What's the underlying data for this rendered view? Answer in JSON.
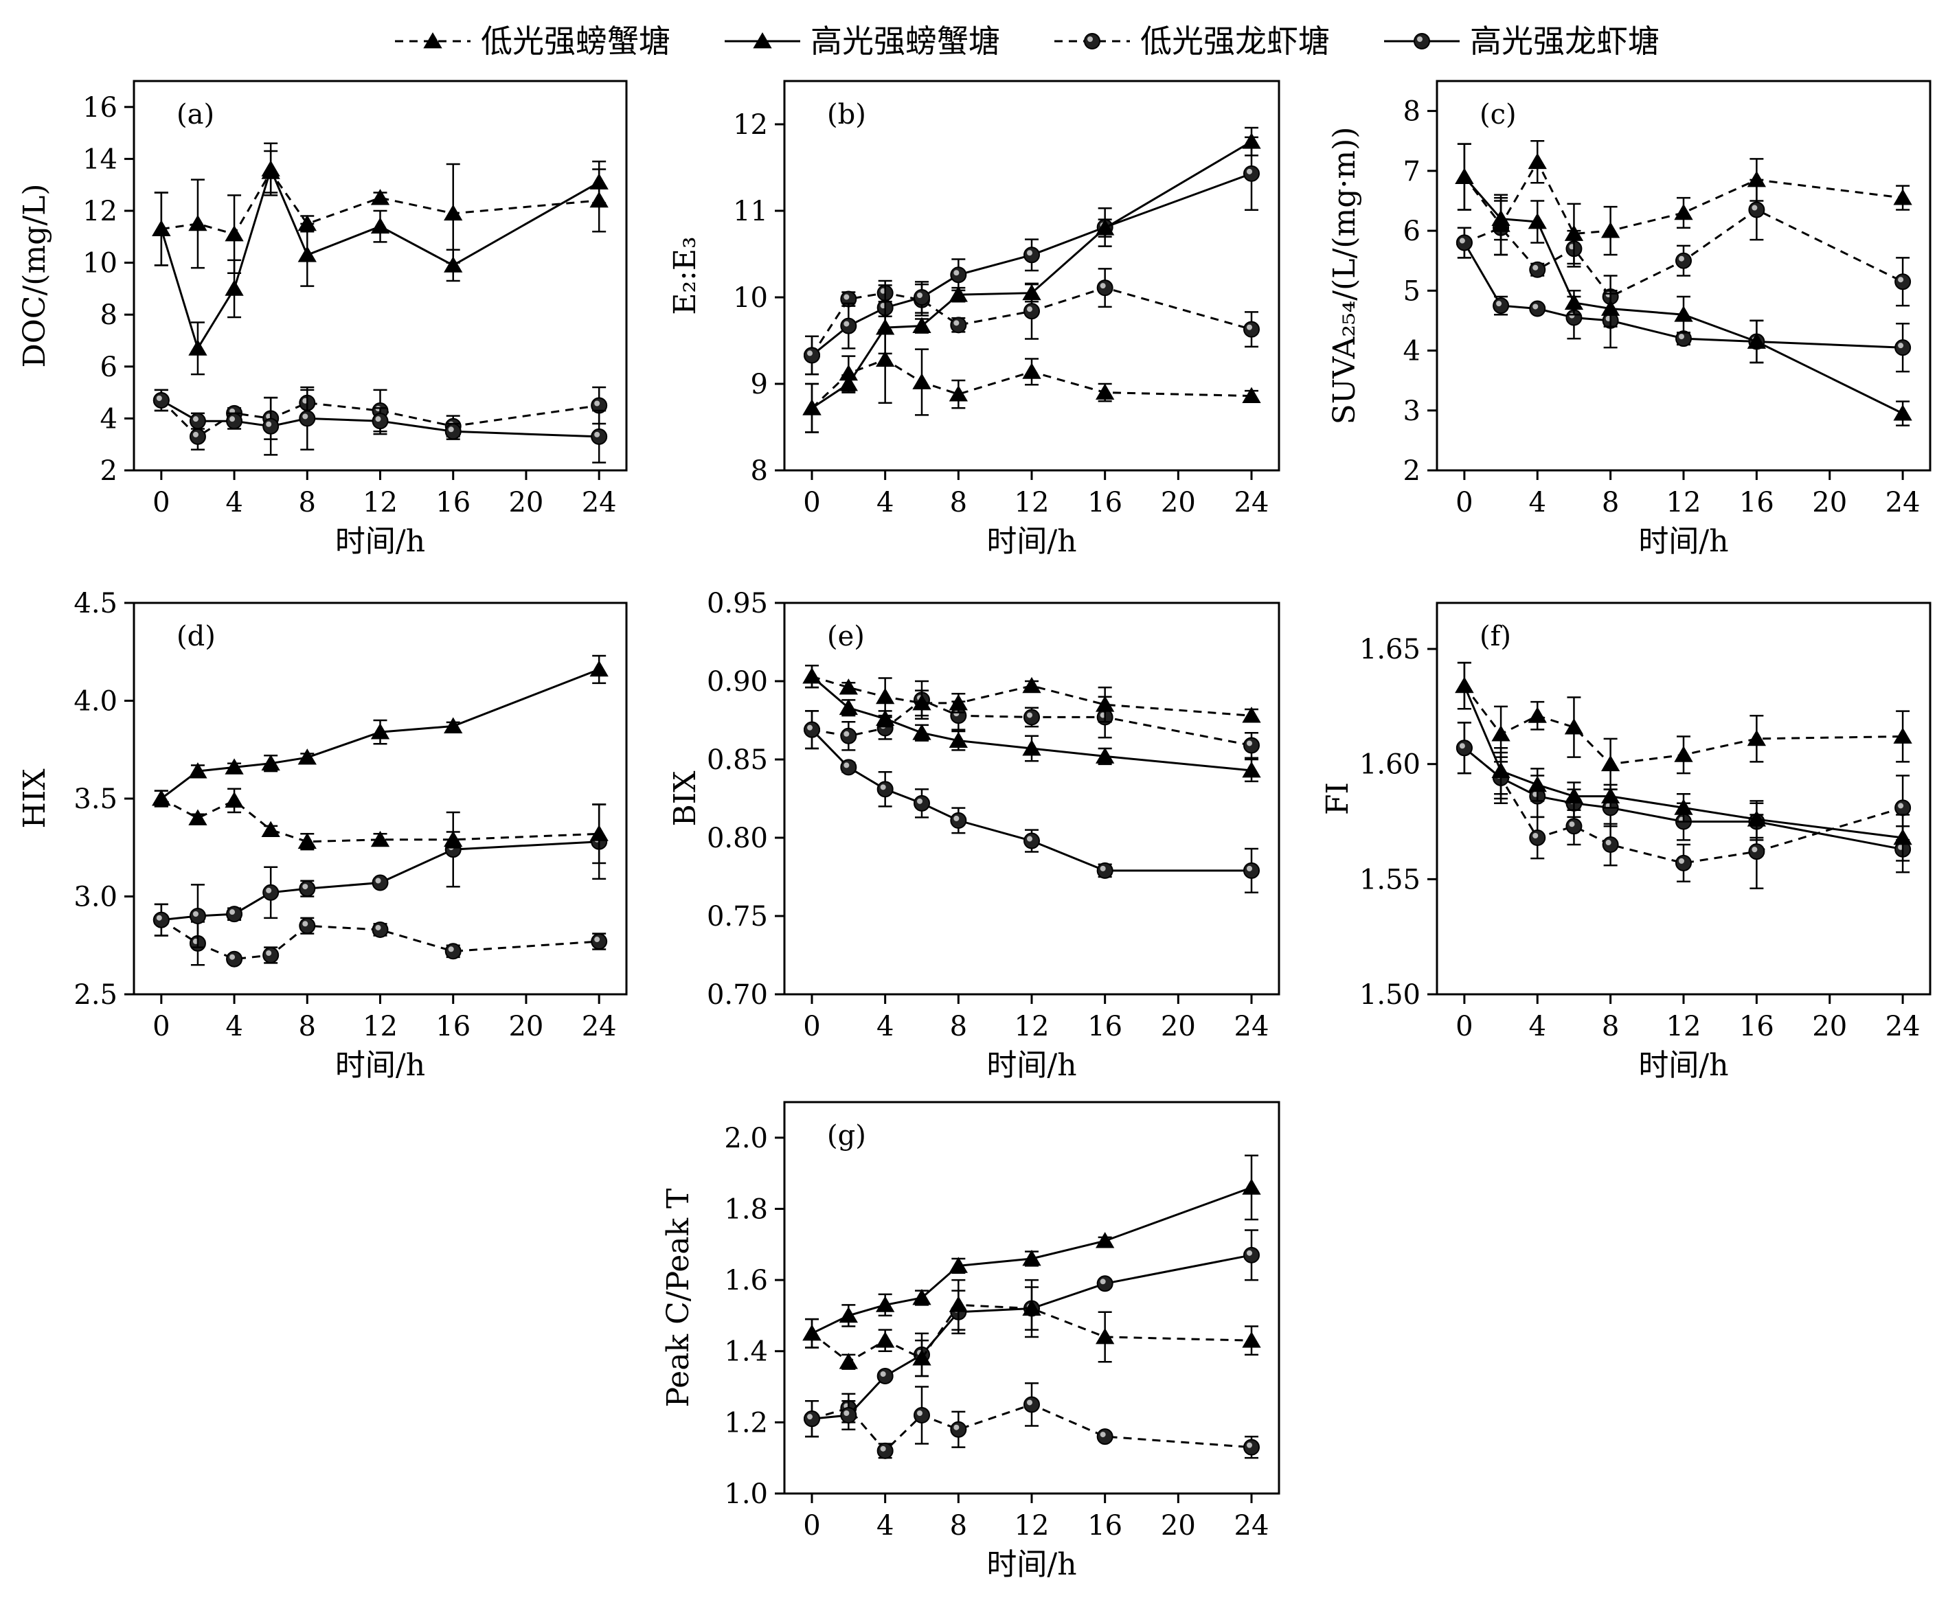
{
  "legend": {
    "items": [
      {
        "label": "低光强螃蟹塘",
        "series_key": "crab_low"
      },
      {
        "label": "高光强螃蟹塘",
        "series_key": "crab_high"
      },
      {
        "label": "低光强龙虾塘",
        "series_key": "cray_low"
      },
      {
        "label": "高光强龙虾塘",
        "series_key": "cray_high"
      }
    ],
    "placement": "top-center"
  },
  "chart_data": [
    {
      "panel": "(a)",
      "type": "line",
      "x": [
        0,
        2,
        4,
        6,
        8,
        12,
        16,
        24
      ],
      "xticks": [
        "0",
        "4",
        "8",
        "12",
        "16",
        "20",
        "24"
      ],
      "xlim": [
        -1.5,
        25.5
      ],
      "ylabel": "DOC/(mg/L)",
      "ylim": [
        2,
        17
      ],
      "yticks": [
        "2",
        "4",
        "6",
        "8",
        "10",
        "12",
        "14",
        "16"
      ],
      "xlabel": "时间/h",
      "series": {
        "crab_low": {
          "y": [
            11.3,
            11.5,
            11.1,
            13.5,
            11.5,
            12.5,
            11.9,
            12.4
          ],
          "err": [
            1.4,
            1.7,
            1.5,
            0.8,
            0.3,
            0.2,
            1.9,
            1.2
          ]
        },
        "crab_high": {
          "y": [
            11.3,
            6.7,
            9.0,
            13.6,
            10.3,
            11.4,
            9.9,
            13.1
          ],
          "err": [
            1.4,
            1.0,
            1.1,
            1.0,
            1.2,
            0.6,
            0.6,
            0.8
          ]
        },
        "cray_low": {
          "y": [
            4.7,
            3.3,
            4.2,
            4.0,
            4.6,
            4.3,
            3.7,
            4.5
          ],
          "err": [
            0.4,
            0.5,
            0.2,
            0.8,
            0.5,
            0.8,
            0.4,
            0.7
          ]
        },
        "cray_high": {
          "y": [
            4.7,
            3.9,
            3.9,
            3.7,
            4.0,
            3.9,
            3.5,
            3.3
          ],
          "err": [
            0.4,
            0.3,
            0.3,
            1.1,
            1.2,
            0.5,
            0.3,
            1.0
          ]
        }
      }
    },
    {
      "panel": "(b)",
      "type": "line",
      "x": [
        0,
        2,
        4,
        6,
        8,
        12,
        16,
        24
      ],
      "xticks": [
        "0",
        "4",
        "8",
        "12",
        "16",
        "20",
        "24"
      ],
      "xlim": [
        -1.5,
        25.5
      ],
      "ylabel": "E₂:E₃",
      "ylim": [
        8,
        12.5
      ],
      "yticks": [
        "8",
        "9",
        "10",
        "11",
        "12"
      ],
      "xlabel": "时间/h",
      "series": {
        "crab_low": {
          "y": [
            8.72,
            9.12,
            9.28,
            9.02,
            8.88,
            9.14,
            8.9,
            8.86
          ],
          "err": [
            0.28,
            0.2,
            0.5,
            0.38,
            0.16,
            0.15,
            0.1,
            0.06
          ]
        },
        "crab_high": {
          "y": [
            8.72,
            9.0,
            9.65,
            9.67,
            10.03,
            10.05,
            10.8,
            11.8
          ],
          "err": [
            0.28,
            0.1,
            0.3,
            0.08,
            0.08,
            0.1,
            0.1,
            0.16
          ]
        },
        "cray_low": {
          "y": [
            9.33,
            9.98,
            10.05,
            9.97,
            9.68,
            9.84,
            10.11,
            9.63
          ],
          "err": [
            0.22,
            0.08,
            0.14,
            0.18,
            0.08,
            0.32,
            0.22,
            0.2
          ]
        },
        "cray_high": {
          "y": [
            9.33,
            9.67,
            9.88,
            10.0,
            10.26,
            10.49,
            10.81,
            11.43
          ],
          "err": [
            0.22,
            0.26,
            0.26,
            0.18,
            0.18,
            0.18,
            0.22,
            0.42
          ]
        }
      }
    },
    {
      "panel": "(c)",
      "type": "line",
      "x": [
        0,
        2,
        4,
        6,
        8,
        12,
        16,
        24
      ],
      "xticks": [
        "0",
        "4",
        "8",
        "12",
        "16",
        "20",
        "24"
      ],
      "xlim": [
        -1.5,
        25.5
      ],
      "ylabel": "SUVA₂₅₄/(L/(mg·m))",
      "ylim": [
        2,
        8.5
      ],
      "yticks": [
        "2",
        "3",
        "4",
        "5",
        "6",
        "7",
        "8"
      ],
      "xlabel": "时间/h",
      "series": {
        "crab_low": {
          "y": [
            6.9,
            6.1,
            7.15,
            5.95,
            6.0,
            6.3,
            6.85,
            6.55
          ],
          "err": [
            0.55,
            0.5,
            0.35,
            0.5,
            0.4,
            0.25,
            0.35,
            0.2
          ]
        },
        "crab_high": {
          "y": [
            6.9,
            6.2,
            6.15,
            4.8,
            4.7,
            4.6,
            4.15,
            2.95
          ],
          "err": [
            0.55,
            0.35,
            0.35,
            0.2,
            0.3,
            0.3,
            0.35,
            0.2
          ]
        },
        "cray_low": {
          "y": [
            5.8,
            6.05,
            5.35,
            5.7,
            4.9,
            5.5,
            6.35,
            5.15
          ],
          "err": [
            0.25,
            0.45,
            0.1,
            0.3,
            0.35,
            0.25,
            0.5,
            0.4
          ]
        },
        "cray_high": {
          "y": [
            5.8,
            4.75,
            4.7,
            4.55,
            4.5,
            4.2,
            4.15,
            4.05
          ],
          "err": [
            0.25,
            0.15,
            0.05,
            0.35,
            0.45,
            0.1,
            0.35,
            0.4
          ]
        }
      }
    },
    {
      "panel": "(d)",
      "type": "line",
      "x": [
        0,
        2,
        4,
        6,
        8,
        12,
        16,
        24
      ],
      "xticks": [
        "0",
        "4",
        "8",
        "12",
        "16",
        "20",
        "24"
      ],
      "xlim": [
        -1.5,
        25.5
      ],
      "ylabel": "HIX",
      "ylim": [
        2.5,
        4.5
      ],
      "yticks": [
        "2.5",
        "3.0",
        "3.5",
        "4.0",
        "4.5"
      ],
      "xlabel": "时间/h",
      "series": {
        "crab_low": {
          "y": [
            3.5,
            3.4,
            3.49,
            3.34,
            3.28,
            3.29,
            3.29,
            3.32
          ],
          "err": [
            0.04,
            0.02,
            0.06,
            0.02,
            0.04,
            0.03,
            0.04,
            0.15
          ]
        },
        "crab_high": {
          "y": [
            3.5,
            3.64,
            3.66,
            3.68,
            3.71,
            3.84,
            3.87,
            4.16
          ],
          "err": [
            0.04,
            0.03,
            0.02,
            0.04,
            0.02,
            0.06,
            0.02,
            0.07
          ]
        },
        "cray_low": {
          "y": [
            2.88,
            2.76,
            2.68,
            2.7,
            2.85,
            2.83,
            2.72,
            2.77
          ],
          "err": [
            0.08,
            0.11,
            0.02,
            0.04,
            0.04,
            0.03,
            0.03,
            0.04
          ]
        },
        "cray_high": {
          "y": [
            2.88,
            2.9,
            2.91,
            3.02,
            3.04,
            3.07,
            3.24,
            3.28
          ],
          "err": [
            0.08,
            0.16,
            0.03,
            0.13,
            0.04,
            0.02,
            0.19,
            0.19
          ]
        }
      }
    },
    {
      "panel": "(e)",
      "type": "line",
      "x": [
        0,
        2,
        4,
        6,
        8,
        12,
        16,
        24
      ],
      "xticks": [
        "0",
        "4",
        "8",
        "12",
        "16",
        "20",
        "24"
      ],
      "xlim": [
        -1.5,
        25.5
      ],
      "ylabel": "BIX",
      "ylim": [
        0.7,
        0.95
      ],
      "yticks": [
        "0.70",
        "0.75",
        "0.80",
        "0.85",
        "0.90",
        "0.95"
      ],
      "xlabel": "时间/h",
      "series": {
        "crab_low": {
          "y": [
            0.903,
            0.896,
            0.89,
            0.886,
            0.886,
            0.897,
            0.885,
            0.878
          ],
          "err": [
            0.007,
            0.003,
            0.012,
            0.008,
            0.006,
            0.003,
            0.011,
            0.004
          ]
        },
        "crab_high": {
          "y": [
            0.903,
            0.883,
            0.876,
            0.867,
            0.862,
            0.857,
            0.852,
            0.843
          ],
          "err": [
            0.007,
            0.005,
            0.005,
            0.005,
            0.006,
            0.008,
            0.005,
            0.007
          ]
        },
        "cray_low": {
          "y": [
            0.869,
            0.865,
            0.87,
            0.888,
            0.878,
            0.877,
            0.877,
            0.859
          ],
          "err": [
            0.012,
            0.009,
            0.007,
            0.012,
            0.009,
            0.006,
            0.013,
            0.008
          ]
        },
        "cray_high": {
          "y": [
            0.869,
            0.845,
            0.831,
            0.822,
            0.811,
            0.798,
            0.779,
            0.779
          ],
          "err": [
            0.012,
            0.003,
            0.011,
            0.009,
            0.008,
            0.007,
            0.004,
            0.014
          ]
        }
      }
    },
    {
      "panel": "(f)",
      "type": "line",
      "x": [
        0,
        2,
        4,
        6,
        8,
        12,
        16,
        24
      ],
      "xticks": [
        "0",
        "4",
        "8",
        "12",
        "16",
        "20",
        "24"
      ],
      "xlim": [
        -1.5,
        25.5
      ],
      "ylabel": "FI",
      "ylim": [
        1.5,
        1.67
      ],
      "yticks": [
        "1.50",
        "1.55",
        "1.60",
        "1.65"
      ],
      "xlabel": "时间/h",
      "series": {
        "crab_low": {
          "y": [
            1.634,
            1.613,
            1.621,
            1.616,
            1.6,
            1.604,
            1.611,
            1.612
          ],
          "err": [
            0.01,
            0.012,
            0.006,
            0.013,
            0.011,
            0.008,
            0.01,
            0.011
          ]
        },
        "crab_high": {
          "y": [
            1.634,
            1.597,
            1.591,
            1.586,
            1.586,
            1.581,
            1.576,
            1.568
          ],
          "err": [
            0.01,
            0.01,
            0.007,
            0.006,
            0.005,
            0.006,
            0.008,
            0.01
          ]
        },
        "cray_low": {
          "y": [
            1.607,
            1.594,
            1.568,
            1.573,
            1.565,
            1.557,
            1.562,
            1.581
          ],
          "err": [
            0.011,
            0.011,
            0.009,
            0.008,
            0.009,
            0.008,
            0.016,
            0.014
          ]
        },
        "cray_high": {
          "y": [
            1.607,
            1.594,
            1.586,
            1.583,
            1.581,
            1.575,
            1.575,
            1.563
          ],
          "err": [
            0.011,
            0.009,
            0.009,
            0.006,
            0.008,
            0.008,
            0.008,
            0.01
          ]
        }
      }
    },
    {
      "panel": "(g)",
      "type": "line",
      "x": [
        0,
        2,
        4,
        6,
        8,
        12,
        16,
        24
      ],
      "xticks": [
        "0",
        "4",
        "8",
        "12",
        "16",
        "20",
        "24"
      ],
      "xlim": [
        -1.5,
        25.5
      ],
      "ylabel": "Peak C/Peak T",
      "ylim": [
        1.0,
        2.1
      ],
      "yticks": [
        "1.0",
        "1.2",
        "1.4",
        "1.6",
        "1.8",
        "2.0"
      ],
      "xlabel": "时间/h",
      "series": {
        "crab_low": {
          "y": [
            1.45,
            1.37,
            1.43,
            1.38,
            1.53,
            1.52,
            1.44,
            1.43
          ],
          "err": [
            0.04,
            0.02,
            0.03,
            0.05,
            0.07,
            0.08,
            0.07,
            0.04
          ]
        },
        "crab_high": {
          "y": [
            1.45,
            1.5,
            1.53,
            1.55,
            1.64,
            1.66,
            1.71,
            1.86
          ],
          "err": [
            0.04,
            0.03,
            0.03,
            0.02,
            0.02,
            0.02,
            0.01,
            0.09
          ]
        },
        "cray_low": {
          "y": [
            1.21,
            1.24,
            1.12,
            1.22,
            1.18,
            1.25,
            1.16,
            1.13
          ],
          "err": [
            0.05,
            0.04,
            0.02,
            0.08,
            0.05,
            0.06,
            0.01,
            0.03
          ]
        },
        "cray_high": {
          "y": [
            1.21,
            1.22,
            1.33,
            1.39,
            1.51,
            1.52,
            1.59,
            1.67
          ],
          "err": [
            0.05,
            0.04,
            0.01,
            0.06,
            0.06,
            0.06,
            0.01,
            0.07
          ]
        }
      }
    }
  ]
}
